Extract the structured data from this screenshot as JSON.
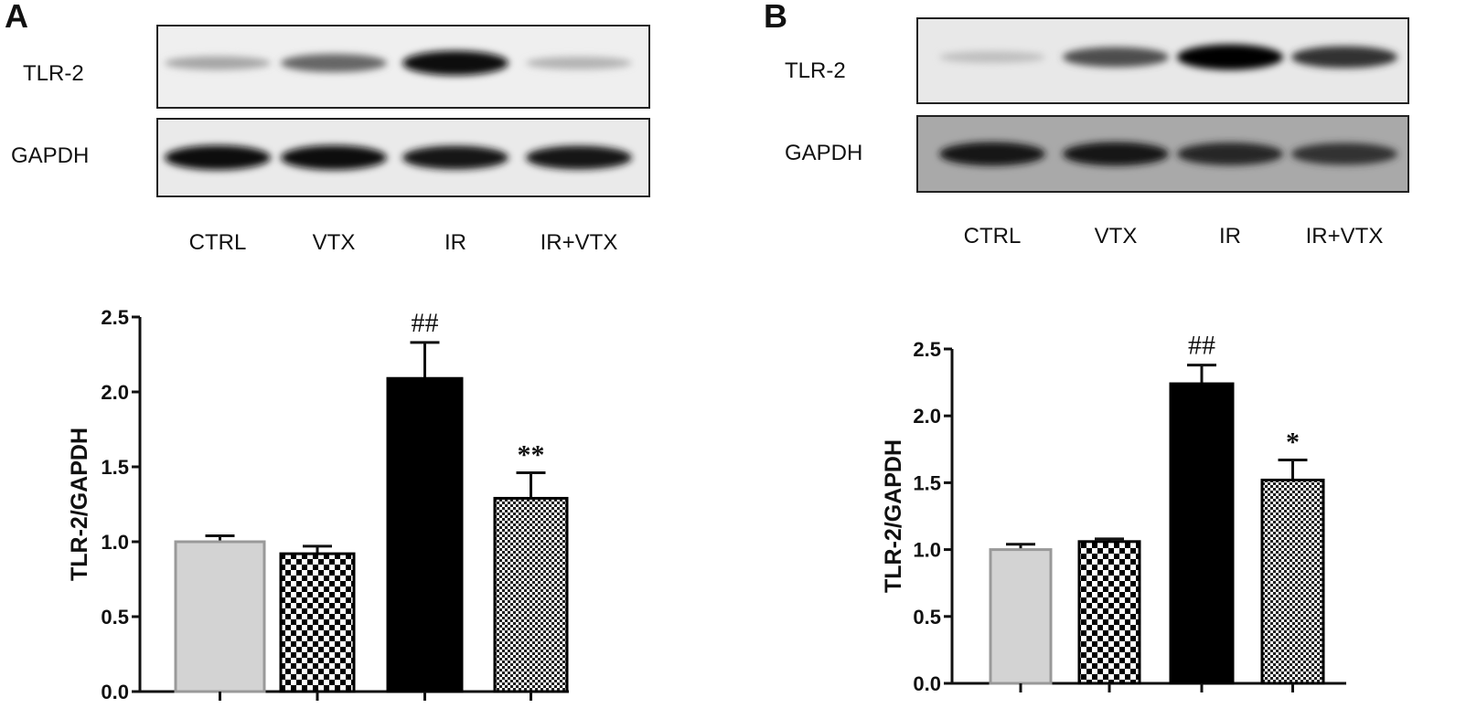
{
  "panels": [
    {
      "letter": "A",
      "blot": {
        "rows": [
          {
            "label": "TLR-2",
            "intensities": [
              0.35,
              0.6,
              0.95,
              0.3
            ],
            "background": "#efefef"
          },
          {
            "label": "GAPDH",
            "intensities": [
              0.95,
              0.95,
              0.9,
              0.9
            ],
            "background": "#eaeaea"
          }
        ],
        "lanes": [
          "CTRL",
          "VTX",
          "IR",
          "IR+VTX"
        ]
      }
    },
    {
      "letter": "B",
      "blot": {
        "rows": [
          {
            "label": "TLR-2",
            "intensities": [
              0.25,
              0.7,
              1.0,
              0.8
            ],
            "background": "#e8e8e8"
          },
          {
            "label": "GAPDH",
            "intensities": [
              0.9,
              0.9,
              0.85,
              0.8
            ],
            "background": "#a9a9a9"
          }
        ],
        "lanes": [
          "CTRL",
          "VTX",
          "IR",
          "IR+VTX"
        ]
      }
    }
  ],
  "chart_data": [
    {
      "type": "bar",
      "panel": "A",
      "categories": [
        "CTRL",
        "VTX",
        "IR",
        "IR+VTX"
      ],
      "values": [
        1.0,
        0.92,
        2.09,
        1.29
      ],
      "error_upper": [
        1.04,
        0.97,
        2.33,
        1.46
      ],
      "annotations": [
        "",
        "",
        "##",
        "**"
      ],
      "fills": [
        "light-gray",
        "coarse-checker",
        "black",
        "fine-checker"
      ],
      "ylabel": "TLR-2/GAPDH",
      "ylim": [
        0,
        2.5
      ],
      "yticks": [
        "0.0",
        "0.5",
        "1.0",
        "1.5",
        "2.0",
        "2.5"
      ],
      "grid": false
    },
    {
      "type": "bar",
      "panel": "B",
      "categories": [
        "CTRL",
        "VTX",
        "IR",
        "IR+VTX"
      ],
      "values": [
        1.0,
        1.06,
        2.24,
        1.52
      ],
      "error_upper": [
        1.04,
        1.08,
        2.38,
        1.67
      ],
      "annotations": [
        "",
        "",
        "##",
        "*"
      ],
      "fills": [
        "light-gray",
        "coarse-checker",
        "black",
        "fine-checker"
      ],
      "ylabel": "TLR-2/GAPDH",
      "ylim": [
        0,
        2.5
      ],
      "yticks": [
        "0.0",
        "0.5",
        "1.0",
        "1.5",
        "2.0",
        "2.5"
      ],
      "grid": false
    }
  ]
}
